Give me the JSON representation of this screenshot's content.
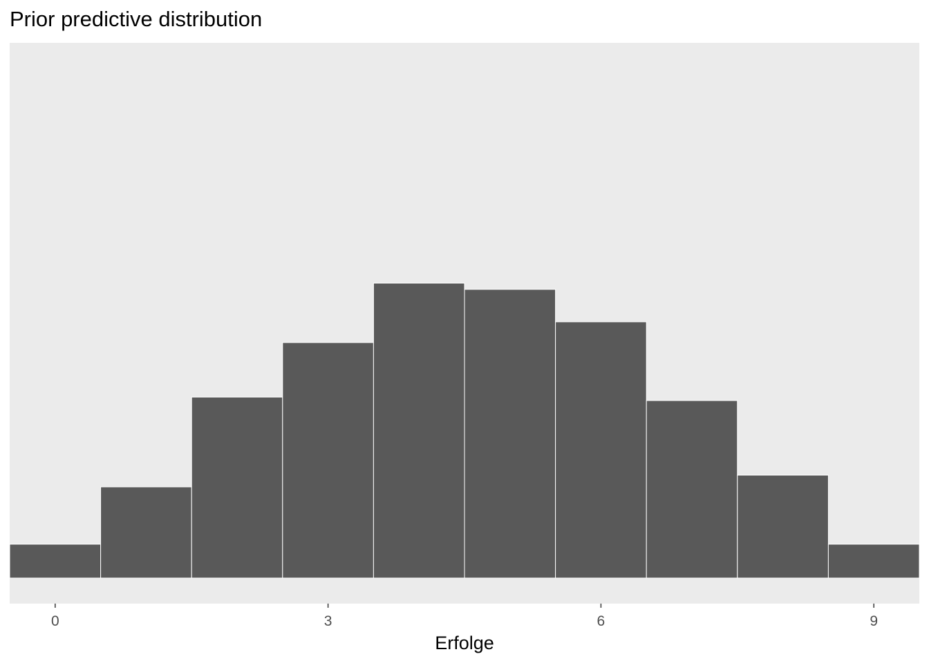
{
  "chart_data": {
    "type": "bar",
    "title": "Prior predictive distribution",
    "xlabel": "Erfolge",
    "ylabel": "",
    "x": [
      0,
      1,
      2,
      3,
      4,
      5,
      6,
      7,
      8,
      9
    ],
    "values": [
      49,
      132,
      262,
      341,
      427,
      418,
      371,
      257,
      149,
      49
    ],
    "xlim": [
      -0.5,
      9.5
    ],
    "ylim": [
      0,
      427
    ],
    "x_ticks": [
      0,
      3,
      6,
      9
    ],
    "y_axis_visible": false,
    "grid": false,
    "colors": {
      "panel_background": "#ebebeb",
      "bar_fill": "#595959",
      "bar_outline": "#ffffff",
      "tick_text": "#4d4d4d"
    }
  }
}
